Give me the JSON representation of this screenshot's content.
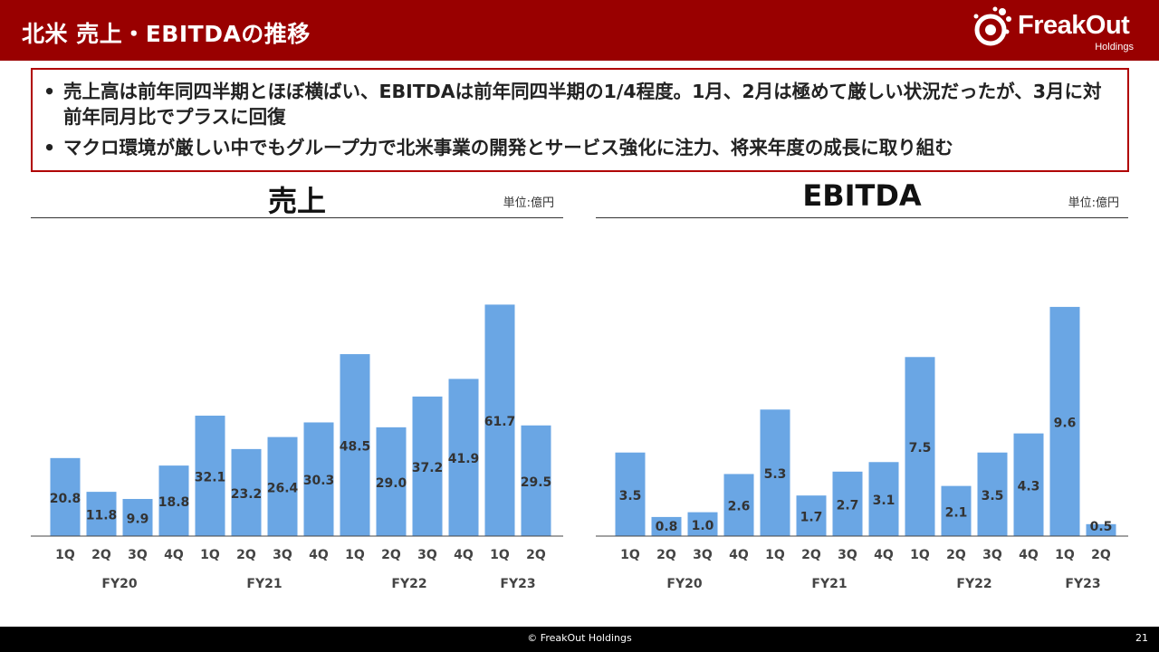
{
  "header": {
    "title": "北米 売上・EBITDAの推移",
    "logo_name": "FreakOut",
    "logo_sub": "Holdings"
  },
  "summary": {
    "bullets": [
      "売上高は前年同四半期とほぼ横ばい、EBITDAは前年同四半期の1/4程度。1月、2月は極めて厳しい状況だったが、3月に対前年同月比でプラスに回復",
      "マクロ環境が厳しい中でもグループ力で北米事業の開発とサービス強化に注力、将来年度の成長に取り組む"
    ]
  },
  "colors": {
    "brand": "#990000",
    "bar": "#6aa6e4",
    "label": "#333333"
  },
  "chart_data": [
    {
      "type": "bar",
      "title": "売上",
      "unit": "単位:億円",
      "categories": [
        "1Q",
        "2Q",
        "3Q",
        "4Q",
        "1Q",
        "2Q",
        "3Q",
        "4Q",
        "1Q",
        "2Q",
        "3Q",
        "4Q",
        "1Q",
        "2Q"
      ],
      "groups": [
        {
          "label": "FY20",
          "start": 0,
          "end": 3
        },
        {
          "label": "FY21",
          "start": 4,
          "end": 7
        },
        {
          "label": "FY22",
          "start": 8,
          "end": 11
        },
        {
          "label": "FY23",
          "start": 12,
          "end": 13
        }
      ],
      "values": [
        20.8,
        11.8,
        9.9,
        18.8,
        32.1,
        23.2,
        26.4,
        30.3,
        48.5,
        29.0,
        37.2,
        41.9,
        61.7,
        29.5
      ],
      "value_labels": [
        "20.8",
        "11.8",
        "9.9",
        "18.8",
        "32.1",
        "23.2",
        "26.4",
        "30.3",
        "48.5",
        "29.0",
        "37.2",
        "41.9",
        "61.7",
        "29.5"
      ],
      "ylim": [
        0,
        70
      ],
      "grid": false
    },
    {
      "type": "bar",
      "title": "EBITDA",
      "unit": "単位:億円",
      "categories": [
        "1Q",
        "2Q",
        "3Q",
        "4Q",
        "1Q",
        "2Q",
        "3Q",
        "4Q",
        "1Q",
        "2Q",
        "3Q",
        "4Q",
        "1Q",
        "2Q"
      ],
      "groups": [
        {
          "label": "FY20",
          "start": 0,
          "end": 3
        },
        {
          "label": "FY21",
          "start": 4,
          "end": 7
        },
        {
          "label": "FY22",
          "start": 8,
          "end": 11
        },
        {
          "label": "FY23",
          "start": 12,
          "end": 13
        }
      ],
      "values": [
        3.5,
        0.8,
        1.0,
        2.6,
        5.3,
        1.7,
        2.7,
        3.1,
        7.5,
        2.1,
        3.5,
        4.3,
        9.6,
        0.5
      ],
      "value_labels": [
        "3.5",
        "0.8",
        "1.0",
        "2.6",
        "5.3",
        "1.7",
        "2.7",
        "3.1",
        "7.5",
        "2.1",
        "3.5",
        "4.3",
        "9.6",
        "0.5"
      ],
      "ylim": [
        0,
        11
      ],
      "grid": false
    }
  ],
  "footer": {
    "copyright": "© FreakOut Holdings",
    "page": "21"
  }
}
